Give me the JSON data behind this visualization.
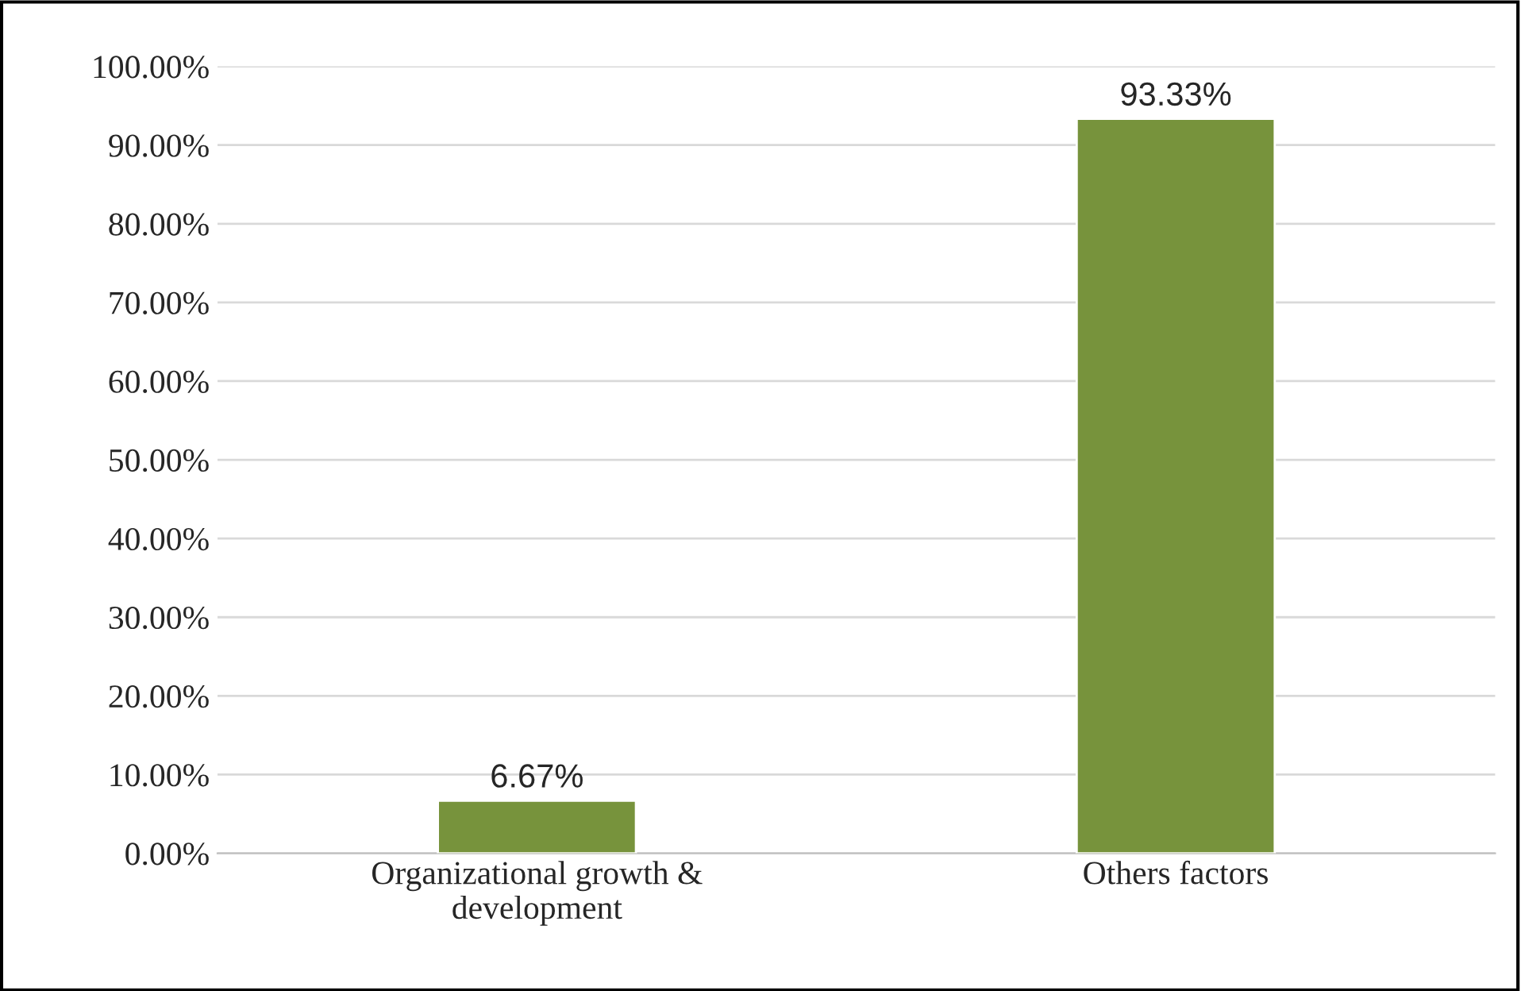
{
  "chart_data": {
    "type": "bar",
    "categories": [
      "Organizational growth &\ndevelopment",
      "Others factors"
    ],
    "values": [
      6.67,
      93.33
    ],
    "value_labels": [
      "6.67%",
      "93.33%"
    ],
    "color": "#77933c",
    "ylim": [
      0,
      100
    ],
    "yticks": [
      {
        "value": 0,
        "label": "0.00%"
      },
      {
        "value": 10,
        "label": "10.00%"
      },
      {
        "value": 20,
        "label": "20.00%"
      },
      {
        "value": 30,
        "label": "30.00%"
      },
      {
        "value": 40,
        "label": "40.00%"
      },
      {
        "value": 50,
        "label": "50.00%"
      },
      {
        "value": 60,
        "label": "60.00%"
      },
      {
        "value": 70,
        "label": "70.00%"
      },
      {
        "value": 80,
        "label": "80.00%"
      },
      {
        "value": 90,
        "label": "90.00%"
      },
      {
        "value": 100,
        "label": "100.00%"
      }
    ],
    "grid": "y",
    "legend": false
  }
}
